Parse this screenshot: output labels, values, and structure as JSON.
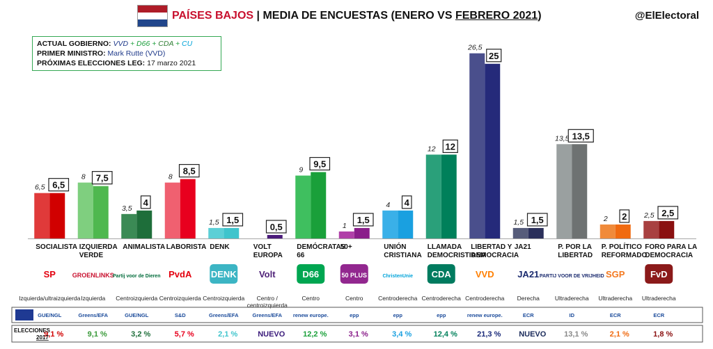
{
  "header": {
    "country": "PAÍSES BAJOS",
    "separator": " | ",
    "subtitle_prefix": "MEDIA DE ENCUESTAS (ENERO VS ",
    "subtitle_underlined": "FEBRERO 2021",
    "subtitle_suffix": ")",
    "handle": "@ElElectoral",
    "flag_colors": [
      "#ae1c28",
      "#ffffff",
      "#21468b"
    ]
  },
  "info": {
    "gov_label": "ACTUAL GOBIERNO:",
    "gov_parties": [
      {
        "name": "VVD",
        "color": "#1f3a8a"
      },
      {
        "name": "D66",
        "color": "#1a9e3a"
      },
      {
        "name": "CDA",
        "color": "#2e7d32"
      },
      {
        "name": "CU",
        "color": "#00a3d9"
      }
    ],
    "gov_sep": " + ",
    "pm_label": "PRIMER MINISTRO:",
    "pm_value": "Mark Rutte (VVD)",
    "elec_label": "PRÓXIMAS ELECCIONES LEG:",
    "elec_value": "17 marzo 2021"
  },
  "chart_data": {
    "type": "bar",
    "series": [
      {
        "name": "Enero",
        "values": [
          6.5,
          8,
          3.5,
          8,
          1.5,
          null,
          9,
          1,
          4,
          12,
          26.5,
          1.5,
          13.5,
          2,
          2.5
        ]
      },
      {
        "name": "Febrero",
        "values": [
          6.5,
          7.5,
          4,
          8.5,
          1.5,
          0.5,
          9.5,
          1.5,
          4,
          12,
          25,
          1.5,
          13.5,
          2,
          2.5
        ]
      }
    ],
    "labels_jan": [
      "6,5",
      "8",
      "3,5",
      "8",
      "1,5",
      "",
      "9",
      "1",
      "4",
      "12",
      "26,5",
      "1,5",
      "13,5",
      "2",
      "2,5"
    ],
    "labels_feb": [
      "6,5",
      "7,5",
      "4",
      "8,5",
      "1,5",
      "0,5",
      "9,5",
      "1,5",
      "4",
      "12",
      "25",
      "1,5",
      "13,5",
      "2",
      "2,5"
    ],
    "categories": [
      [
        "SOCIALISTA"
      ],
      [
        "IZQUIERDA",
        "VERDE"
      ],
      [
        "ANIMALISTA"
      ],
      [
        "LABORISTA"
      ],
      [
        "DENK"
      ],
      [
        "VOLT",
        "EUROPA"
      ],
      [
        "DEMÓCRATAS",
        "66"
      ],
      [
        "50+"
      ],
      [
        "UNIÓN",
        "CRISTIANA"
      ],
      [
        "LLAMADA",
        "DEMOCRISTIANA"
      ],
      [
        "LIBERTAD Y",
        "DEMOCRACIA"
      ],
      [
        "JA21"
      ],
      [
        "P. POR LA",
        "LIBERTAD"
      ],
      [
        "P. POLÍTICO",
        "REFORMADO"
      ],
      [
        "FORO PARA LA",
        "DEMOCRACIA"
      ]
    ],
    "colors_jan": [
      "#e03a3a",
      "#7fcf7f",
      "#3b8a55",
      "#f06070",
      "#5ccfd6",
      "#6a2c8a",
      "#3fbf5f",
      "#b040a8",
      "#3ab0e8",
      "#2aa07a",
      "#4a4f8c",
      "#565c7a",
      "#9aa0a0",
      "#f08a3a",
      "#a84040"
    ],
    "colors_feb": [
      "#d10000",
      "#4fb84f",
      "#1e6e3a",
      "#e8001e",
      "#3fc4cc",
      "#4a1a7a",
      "#1aa03a",
      "#8a1e8a",
      "#1aa0e0",
      "#00805a",
      "#252a7a",
      "#2a2f5a",
      "#6e7272",
      "#f06a10",
      "#8a1010"
    ],
    "ideology": [
      [
        "Izquierda/ultraizquierda"
      ],
      [
        "Izquierda"
      ],
      [
        "Centroizquierda"
      ],
      [
        "Centroizquierda"
      ],
      [
        "Centroizquierda"
      ],
      [
        "Centro /",
        "centroizquierda"
      ],
      [
        "Centro"
      ],
      [
        "Centro"
      ],
      [
        "Centroderecha"
      ],
      [
        "Centroderecha"
      ],
      [
        "Centroderecha"
      ],
      [
        "Derecha"
      ],
      [
        "Ultraderecha"
      ],
      [
        "Ultraderecha"
      ],
      [
        "Ultraderecha"
      ]
    ],
    "logos": [
      {
        "text": "SP",
        "color": "#e3000f",
        "bg": "none"
      },
      {
        "text": "GROENLINKS",
        "color": "#c8102e",
        "bg": "none"
      },
      {
        "text": "Partij voor de Dieren",
        "color": "#006b3a",
        "bg": "none"
      },
      {
        "text": "PvdA",
        "color": "#e3000f",
        "bg": "none"
      },
      {
        "text": "DENK",
        "color": "#ffffff",
        "bg": "#3cb5c4"
      },
      {
        "text": "Volt",
        "color": "#502379",
        "bg": "none"
      },
      {
        "text": "D66",
        "color": "#ffffff",
        "bg": "#00a651"
      },
      {
        "text": "50 PLUS",
        "color": "#ffffff",
        "bg": "#92278f"
      },
      {
        "text": "ChristenUnie",
        "color": "#00a3d9",
        "bg": "none"
      },
      {
        "text": "CDA",
        "color": "#ffffff",
        "bg": "#007b5f"
      },
      {
        "text": "VVD",
        "color": "#ff7f00",
        "bg": "none"
      },
      {
        "text": "JA21",
        "color": "#1a2a6e",
        "bg": "none"
      },
      {
        "text": "PARTIJ VOOR DE VRIJHEID",
        "color": "#1a2a6e",
        "bg": "none"
      },
      {
        "text": "SGP",
        "color": "#f47920",
        "bg": "none"
      },
      {
        "text": "FvD",
        "color": "#ffffff",
        "bg": "#8b1a1a"
      }
    ],
    "eu_groups": [
      "GUE/NGL",
      "Greens/EFA",
      "GUE/NGL",
      "S&D",
      "Greens/EFA",
      "Greens/EFA",
      "renew europe.",
      "epp",
      "epp",
      "epp",
      "renew europe.",
      "ECR",
      "ID",
      "ECR",
      "ECR"
    ],
    "elections_label_1": "ELECCIONES",
    "elections_label_2": "2017",
    "elections_2017": [
      "9,1 %",
      "9,1 %",
      "3,2 %",
      "5,7 %",
      "2,1 %",
      "NUEVO",
      "12,2 %",
      "3,1 %",
      "3,4 %",
      "12,4 %",
      "21,3 %",
      "NUEVO",
      "13,1 %",
      "2,1 %",
      "1,8 %"
    ],
    "elections_colors": [
      "#d10000",
      "#3a9a3a",
      "#1e6e3a",
      "#e8001e",
      "#3fc4cc",
      "#3a1a7a",
      "#1aa03a",
      "#8a1e8a",
      "#1aa0e0",
      "#00805a",
      "#1a2a7a",
      "#1a2a5a",
      "#888888",
      "#f06a10",
      "#8a1010"
    ]
  }
}
